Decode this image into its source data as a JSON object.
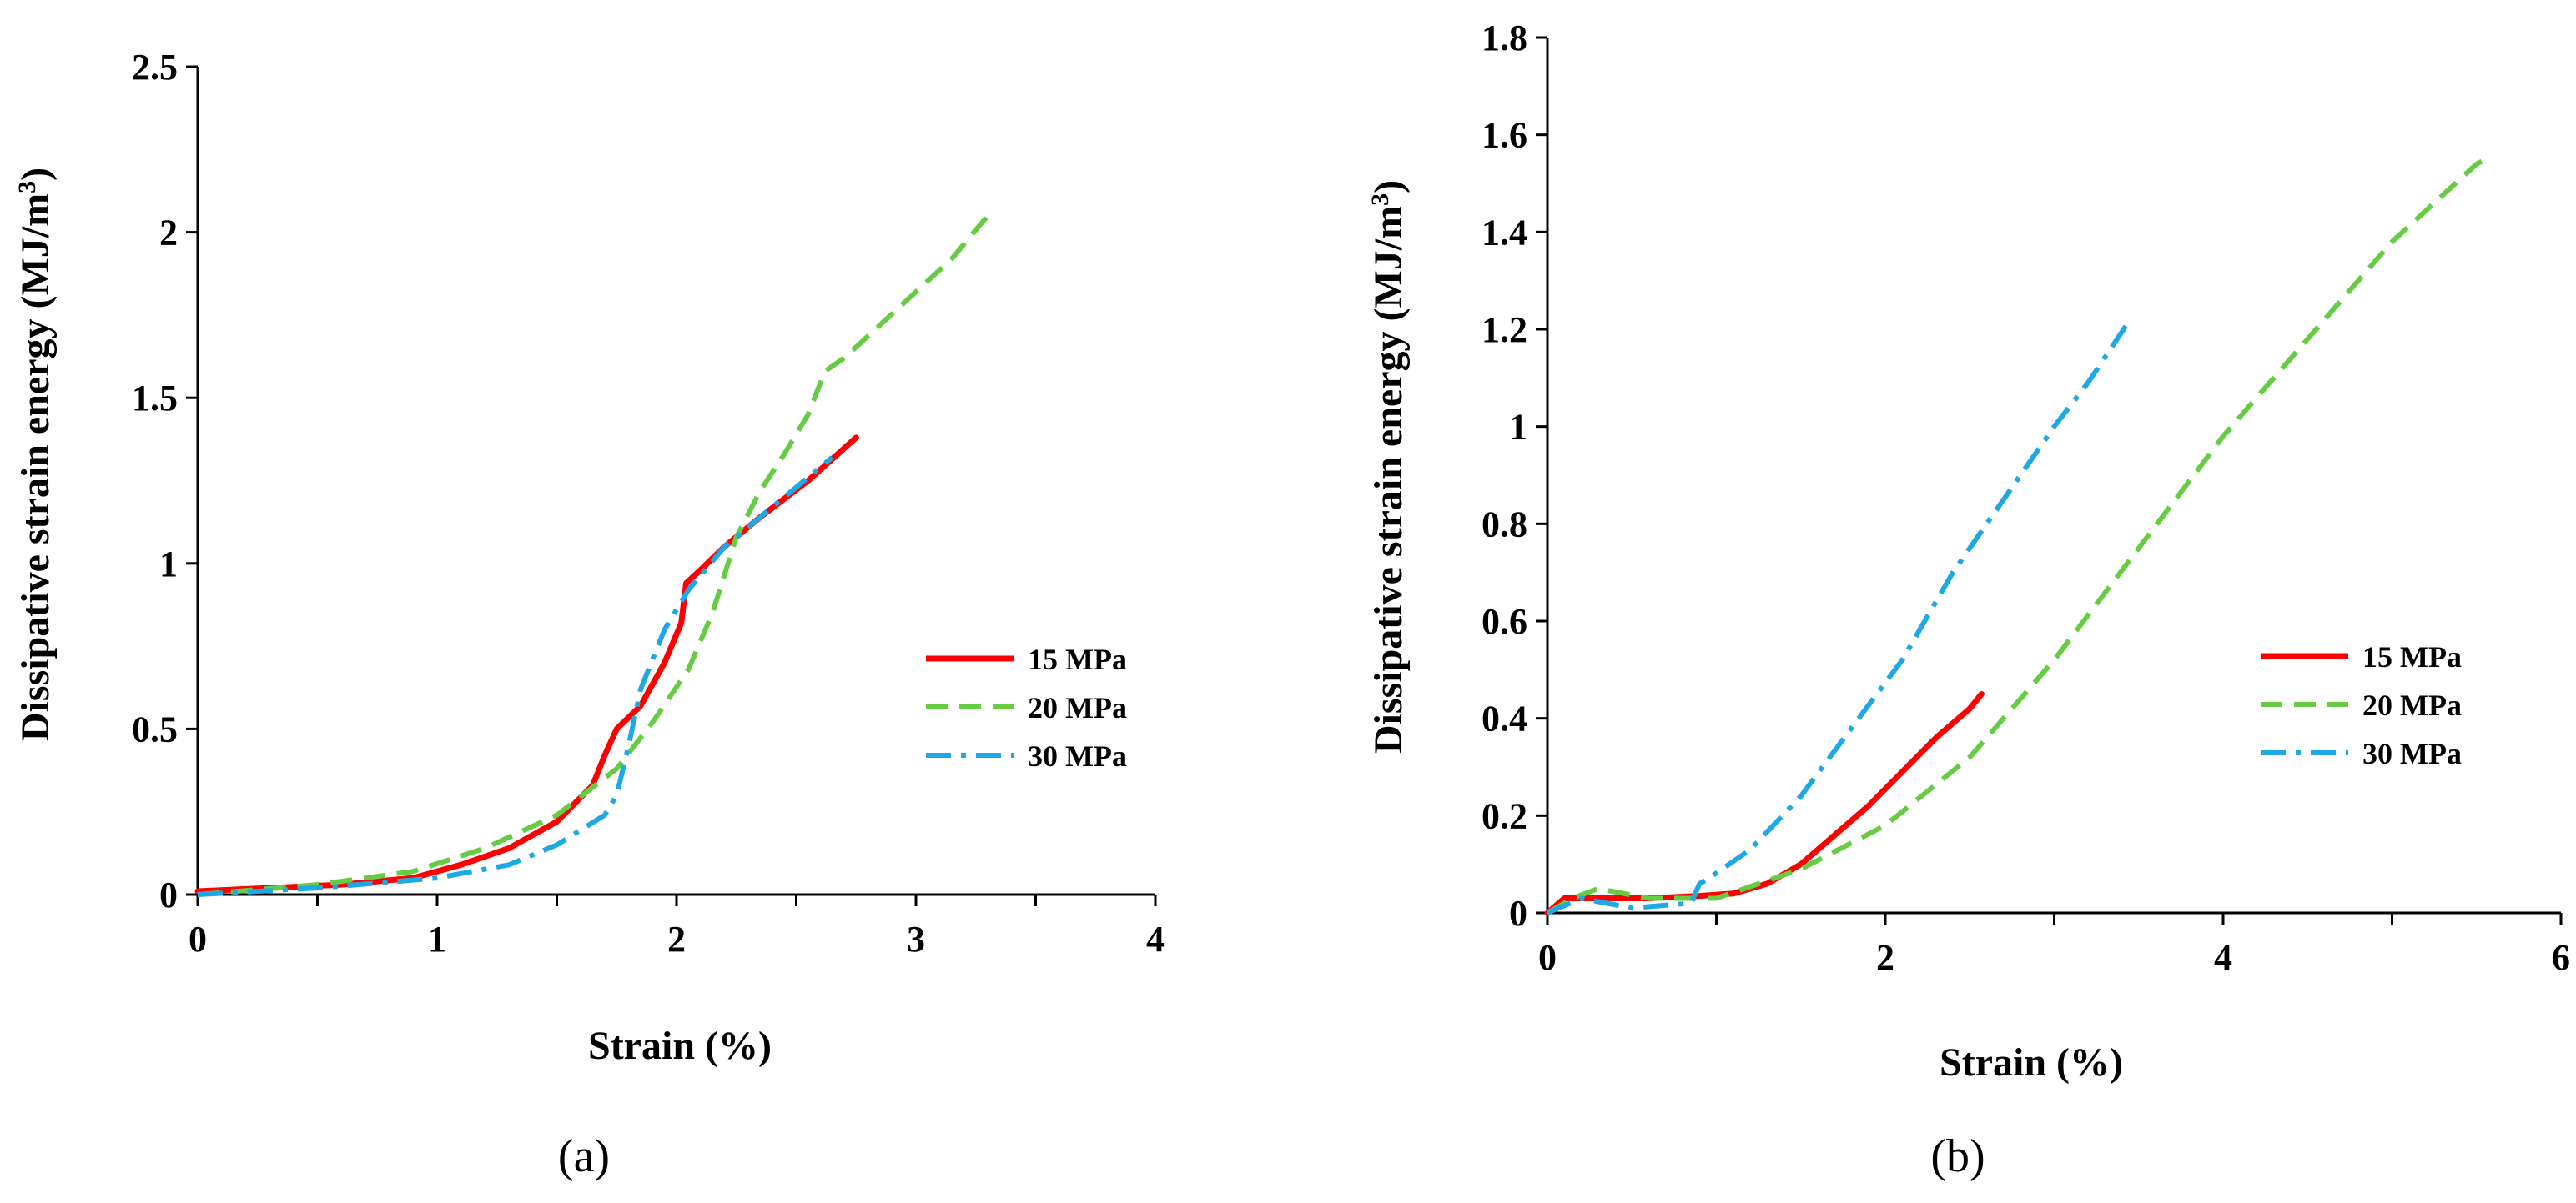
{
  "chart_data": [
    {
      "panel_label": "(a)",
      "type": "line",
      "xlabel": "Strain (%)",
      "ylabel": "Dissipative strain energy (MJ/m",
      "ylabel_sup": "3",
      "ylabel_close": ")",
      "xlim": [
        0,
        4
      ],
      "ylim": [
        0,
        2.5
      ],
      "xticks": [
        0,
        1,
        2,
        3,
        4
      ],
      "xtick_labels": [
        "0",
        "1",
        "2",
        "3",
        "4"
      ],
      "yticks": [
        0,
        0.5,
        1,
        1.5,
        2,
        2.5
      ],
      "ytick_labels": [
        "0",
        "0.5",
        "1",
        "1.5",
        "2",
        "2.5"
      ],
      "legend_position": "right",
      "series": [
        {
          "name": "15 MPa",
          "color": "#ff0000",
          "style": "solid",
          "x": [
            0,
            0.3,
            0.6,
            0.9,
            1.1,
            1.3,
            1.5,
            1.65,
            1.7,
            1.75,
            1.85,
            1.95,
            2.02,
            2.04,
            2.1,
            2.2,
            2.35,
            2.55,
            2.75
          ],
          "y": [
            0.01,
            0.02,
            0.03,
            0.05,
            0.09,
            0.14,
            0.22,
            0.33,
            0.42,
            0.5,
            0.57,
            0.7,
            0.82,
            0.94,
            0.98,
            1.05,
            1.14,
            1.25,
            1.38
          ]
        },
        {
          "name": "20 MPa",
          "color": "#66cc44",
          "style": "dashed",
          "x": [
            0,
            0.5,
            0.9,
            1.2,
            1.5,
            1.75,
            1.9,
            2.05,
            2.15,
            2.25,
            2.35,
            2.45,
            2.55,
            2.62,
            2.7,
            2.85,
            3.0,
            3.15,
            3.3
          ],
          "y": [
            0.0,
            0.03,
            0.07,
            0.14,
            0.24,
            0.38,
            0.52,
            0.68,
            0.85,
            1.08,
            1.22,
            1.33,
            1.45,
            1.58,
            1.62,
            1.72,
            1.82,
            1.92,
            2.05
          ]
        },
        {
          "name": "30 MPa",
          "color": "#1ea9e6",
          "style": "dashdot",
          "x": [
            0,
            0.5,
            1.0,
            1.3,
            1.5,
            1.7,
            1.75,
            1.8,
            1.85,
            1.95,
            2.05,
            2.2,
            2.4,
            2.65
          ],
          "y": [
            0.0,
            0.02,
            0.05,
            0.09,
            0.15,
            0.24,
            0.3,
            0.45,
            0.62,
            0.8,
            0.92,
            1.05,
            1.17,
            1.32
          ]
        }
      ]
    },
    {
      "panel_label": "(b)",
      "type": "line",
      "xlabel": "Strain (%)",
      "ylabel": "Dissipative strain energy (MJ/m",
      "ylabel_sup": "3",
      "ylabel_close": ")",
      "xlim": [
        0,
        6
      ],
      "ylim": [
        0,
        1.8
      ],
      "xticks": [
        0,
        2,
        4,
        6
      ],
      "xtick_labels": [
        "0",
        "2",
        "4",
        "6"
      ],
      "yticks": [
        0,
        0.2,
        0.4,
        0.6,
        0.8,
        1.0,
        1.2,
        1.4,
        1.6,
        1.8
      ],
      "ytick_labels": [
        "0",
        "0.2",
        "0.4",
        "0.6",
        "0.8",
        "1",
        "1.2",
        "1.4",
        "1.6",
        "1.8"
      ],
      "legend_position": "right",
      "series": [
        {
          "name": "15 MPa",
          "color": "#ff0000",
          "style": "solid",
          "x": [
            0,
            0.1,
            0.3,
            0.6,
            0.9,
            1.1,
            1.3,
            1.5,
            1.7,
            1.9,
            2.1,
            2.3,
            2.5,
            2.57
          ],
          "y": [
            0.0,
            0.03,
            0.03,
            0.03,
            0.035,
            0.04,
            0.06,
            0.1,
            0.16,
            0.22,
            0.29,
            0.36,
            0.42,
            0.45
          ]
        },
        {
          "name": "20 MPa",
          "color": "#66cc44",
          "style": "dashed",
          "x": [
            0,
            0.15,
            0.3,
            0.6,
            1.0,
            1.5,
            2.0,
            2.5,
            3.0,
            3.5,
            4.0,
            4.5,
            5.0,
            5.5,
            5.56
          ],
          "y": [
            0.0,
            0.03,
            0.05,
            0.03,
            0.03,
            0.09,
            0.18,
            0.32,
            0.52,
            0.75,
            0.98,
            1.18,
            1.38,
            1.54,
            1.55
          ]
        },
        {
          "name": "30 MPa",
          "color": "#1ea9e6",
          "style": "dashdot",
          "x": [
            0,
            0.2,
            0.5,
            0.85,
            0.9,
            0.95,
            1.2,
            1.5,
            1.8,
            2.1,
            2.4,
            2.7,
            3.0,
            3.2,
            3.43
          ],
          "y": [
            0.0,
            0.03,
            0.01,
            0.02,
            0.06,
            0.07,
            0.13,
            0.24,
            0.38,
            0.52,
            0.7,
            0.85,
            1.0,
            1.09,
            1.21
          ]
        }
      ]
    }
  ]
}
